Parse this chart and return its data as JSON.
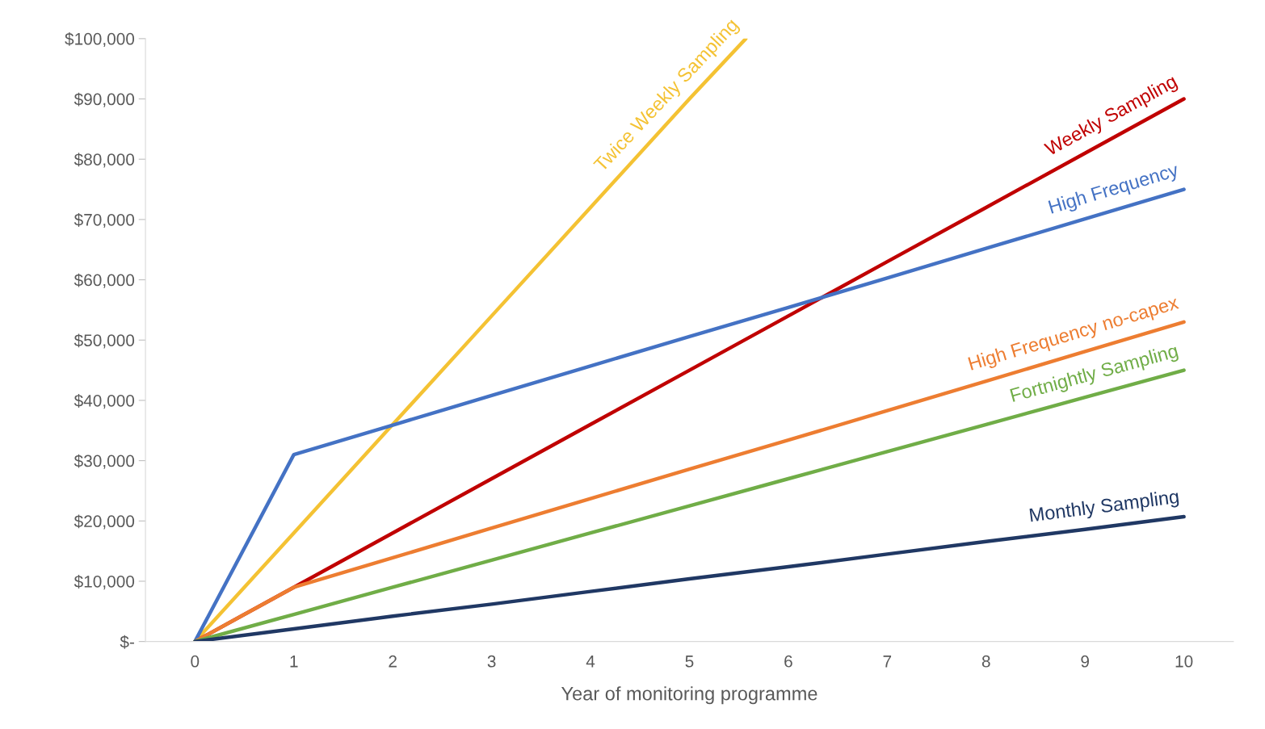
{
  "chart_data": {
    "type": "line",
    "xlabel": "Year of monitoring programme",
    "xlim": [
      -0.5,
      10.5
    ],
    "xticks": [
      0,
      1,
      2,
      3,
      4,
      5,
      6,
      7,
      8,
      9,
      10
    ],
    "ylim": [
      0,
      100000
    ],
    "yticks": [
      {
        "value": 0,
        "label": "$-"
      },
      {
        "value": 10000,
        "label": "$10,000"
      },
      {
        "value": 20000,
        "label": "$20,000"
      },
      {
        "value": 30000,
        "label": "$30,000"
      },
      {
        "value": 40000,
        "label": "$40,000"
      },
      {
        "value": 50000,
        "label": "$50,000"
      },
      {
        "value": 60000,
        "label": "$60,000"
      },
      {
        "value": 70000,
        "label": "$70,000"
      },
      {
        "value": 80000,
        "label": "$80,000"
      },
      {
        "value": 90000,
        "label": "$90,000"
      },
      {
        "value": 100000,
        "label": "$100,000"
      }
    ],
    "grid": false,
    "legend": false,
    "marker": "none",
    "line_style": "solid",
    "series": [
      {
        "name": "Twice Weekly Sampling",
        "color": "#f4c233",
        "x": [
          0,
          1,
          2,
          3,
          4,
          5,
          5.57
        ],
        "values": [
          0,
          18000,
          36000,
          54000,
          72000,
          90000,
          100000
        ]
      },
      {
        "name": "Weekly Sampling",
        "color": "#c00000",
        "x": [
          0,
          1,
          2,
          3,
          4,
          5,
          6,
          7,
          8,
          9,
          10
        ],
        "values": [
          0,
          9000,
          18000,
          27000,
          36000,
          45000,
          54000,
          63000,
          72000,
          81000,
          90000
        ]
      },
      {
        "name": "High Frequency",
        "color": "#4472c4",
        "x": [
          0,
          1,
          2,
          3,
          4,
          5,
          6,
          7,
          8,
          9,
          10
        ],
        "values": [
          0,
          31000,
          35900,
          40800,
          45700,
          50600,
          55400,
          60300,
          65200,
          70100,
          75000
        ]
      },
      {
        "name": "High Frequency no-capex",
        "color": "#ed7d31",
        "x": [
          0,
          1,
          2,
          3,
          4,
          5,
          6,
          7,
          8,
          9,
          10
        ],
        "values": [
          0,
          9000,
          13900,
          18800,
          23700,
          28600,
          33400,
          38300,
          43200,
          48100,
          53000
        ]
      },
      {
        "name": "Fortnightly Sampling",
        "color": "#70ad47",
        "x": [
          0,
          1,
          2,
          3,
          4,
          5,
          6,
          7,
          8,
          9,
          10
        ],
        "values": [
          0,
          4500,
          9000,
          13500,
          18000,
          22500,
          27000,
          31500,
          36000,
          40500,
          45000
        ]
      },
      {
        "name": "Monthly Sampling",
        "color": "#203864",
        "x": [
          0,
          1,
          2,
          3,
          4,
          5,
          6,
          7,
          8,
          9,
          10
        ],
        "values": [
          0,
          2100,
          4200,
          6200,
          8300,
          10400,
          12400,
          14500,
          16600,
          18600,
          20700
        ]
      }
    ]
  }
}
